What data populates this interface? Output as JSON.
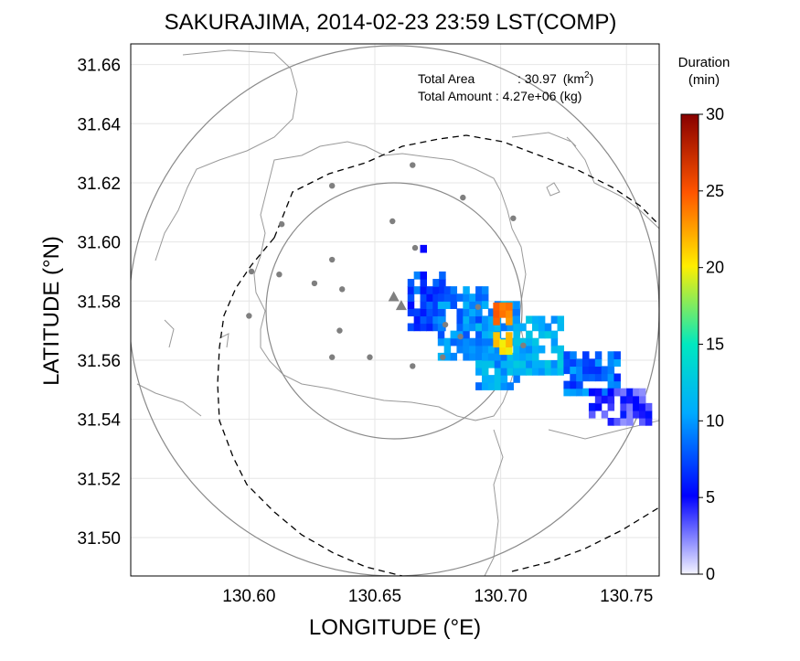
{
  "title": "SAKURAJIMA, 2014-02-23 23:59 LST(COMP)",
  "xlabel": "LONGITUDE (°E)",
  "ylabel": "LATITUDE (°N)",
  "annotations": {
    "area_label": "Total Area",
    "area_value": ": 30.97",
    "area_unit_base": "(km",
    "area_unit_exp": "2",
    "area_unit_close": ")",
    "amount_text": "Total Amount : 4.27e+06 (kg)"
  },
  "colorbar": {
    "title": "Duration",
    "unit": "(min)",
    "range": [
      0,
      30
    ],
    "ticks": [
      0,
      5,
      10,
      15,
      20,
      25,
      30
    ],
    "colors": [
      "#f4f4ff",
      "#0000ff",
      "#00aaff",
      "#00e8c0",
      "#ffee00",
      "#ff5500",
      "#880000"
    ]
  },
  "chart_data": {
    "type": "heatmap",
    "title": "SAKURAJIMA, 2014-02-23 23:59 LST(COMP)",
    "xlabel": "LONGITUDE (°E)",
    "ylabel": "LATITUDE (°N)",
    "xlim": [
      130.553,
      130.763
    ],
    "ylim": [
      31.487,
      31.667
    ],
    "xticks": [
      "130.60",
      "130.65",
      "130.70",
      "130.75"
    ],
    "yticks": [
      "31.50",
      "31.52",
      "31.54",
      "31.56",
      "31.58",
      "31.60",
      "31.62",
      "31.64",
      "31.66"
    ],
    "value_label": "Duration (min)",
    "center": {
      "lon": 130.6575,
      "lat": 31.5775
    },
    "range_rings_deg_lon": [
      0.1,
      0.2
    ],
    "vents": [
      {
        "lon": 130.6575,
        "lat": 31.5815
      },
      {
        "lon": 130.6605,
        "lat": 31.5785
      }
    ],
    "stations": [
      [
        130.665,
        31.626
      ],
      [
        130.633,
        31.619
      ],
      [
        130.685,
        31.615
      ],
      [
        130.657,
        31.607
      ],
      [
        130.705,
        31.608
      ],
      [
        130.613,
        31.606
      ],
      [
        130.666,
        31.598
      ],
      [
        130.601,
        31.59
      ],
      [
        130.612,
        31.589
      ],
      [
        130.626,
        31.586
      ],
      [
        130.637,
        31.584
      ],
      [
        130.633,
        31.594
      ],
      [
        130.6,
        31.575
      ],
      [
        130.636,
        31.57
      ],
      [
        130.633,
        31.561
      ],
      [
        130.648,
        31.561
      ],
      [
        130.665,
        31.558
      ],
      [
        130.677,
        31.561
      ],
      [
        130.678,
        31.572
      ],
      [
        130.684,
        31.568
      ],
      [
        130.691,
        31.578
      ],
      [
        130.709,
        31.565
      ]
    ],
    "plume_zones": [
      {
        "lon": [
          130.663,
          130.678
        ],
        "lat": [
          31.57,
          31.59
        ],
        "value": 7
      },
      {
        "lon": [
          130.675,
          130.695
        ],
        "lat": [
          31.56,
          31.585
        ],
        "value": 9
      },
      {
        "lon": [
          130.69,
          130.705
        ],
        "lat": [
          31.55,
          31.58
        ],
        "value": 10
      },
      {
        "lon": [
          130.705,
          130.725
        ],
        "lat": [
          31.555,
          31.575
        ],
        "value": 11
      },
      {
        "lon": [
          130.725,
          130.745
        ],
        "lat": [
          31.548,
          31.562
        ],
        "value": 8
      },
      {
        "lon": [
          130.735,
          130.76
        ],
        "lat": [
          31.538,
          31.55
        ],
        "value": 4
      },
      {
        "lon": [
          130.697,
          130.704
        ],
        "lat": [
          31.572,
          31.578
        ],
        "value": 24
      },
      {
        "lon": [
          130.697,
          130.704
        ],
        "lat": [
          31.562,
          31.568
        ],
        "value": 20
      },
      {
        "lon": [
          130.668,
          130.673
        ],
        "lat": [
          31.594,
          31.598
        ],
        "value": 3
      }
    ]
  }
}
